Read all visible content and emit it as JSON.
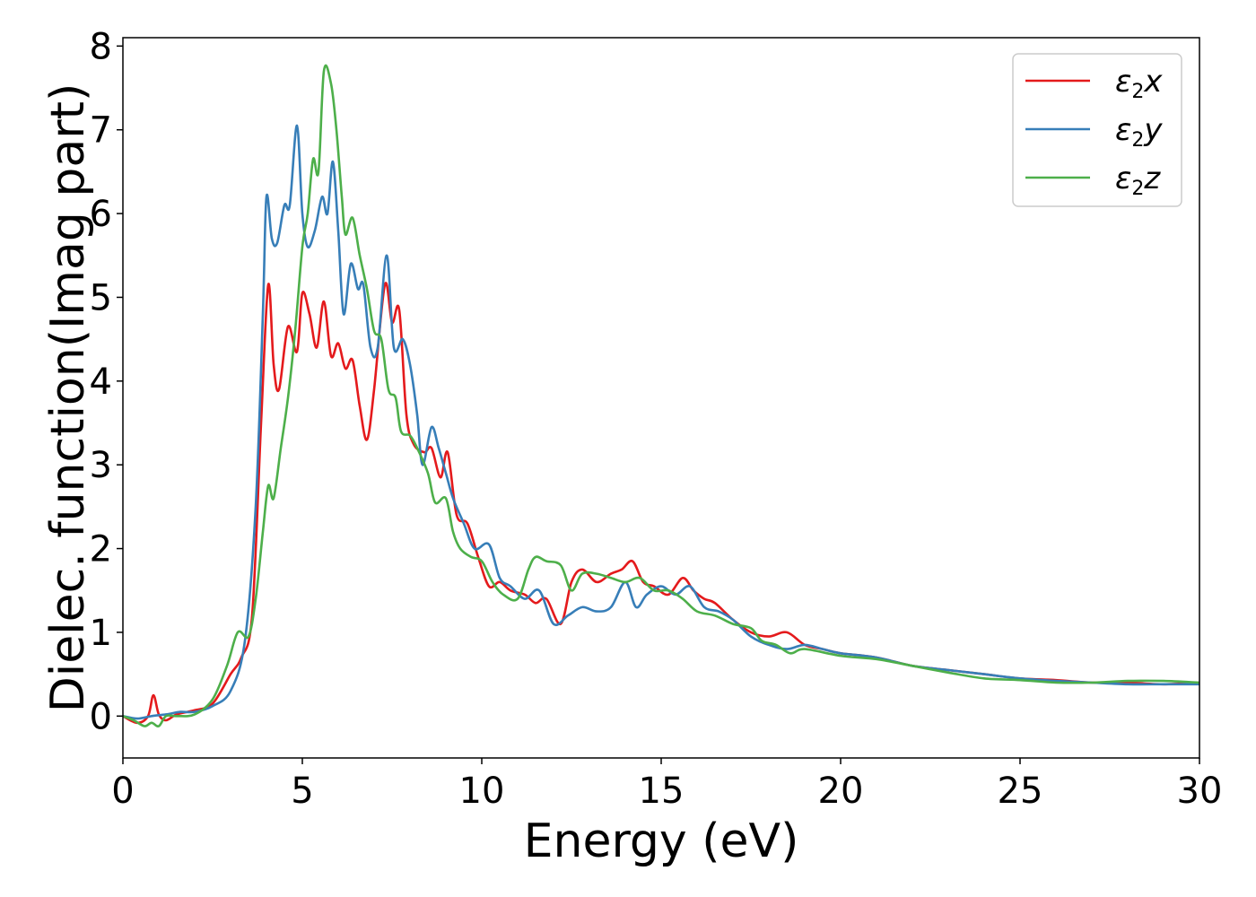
{
  "chart_data": {
    "type": "line",
    "xlabel": "Energy (eV)",
    "ylabel": "Dielec. function(Imag part)",
    "xlim": [
      0,
      30
    ],
    "ylim": [
      -0.5,
      8.1
    ],
    "xticks": [
      0,
      5,
      10,
      15,
      20,
      25,
      30
    ],
    "yticks": [
      0,
      1,
      2,
      3,
      4,
      5,
      6,
      7,
      8
    ],
    "grid": false,
    "legend_position": "top-right",
    "series": [
      {
        "name": "ε2x",
        "name_parts": [
          "ε",
          "2",
          "x"
        ],
        "color": "#e41a1c",
        "points": [
          [
            0,
            0
          ],
          [
            0.4,
            -0.08
          ],
          [
            0.7,
            0
          ],
          [
            0.85,
            0.25
          ],
          [
            1.0,
            0.02
          ],
          [
            1.2,
            -0.05
          ],
          [
            1.5,
            0.02
          ],
          [
            2.0,
            0.07
          ],
          [
            2.5,
            0.15
          ],
          [
            3.0,
            0.5
          ],
          [
            3.3,
            0.7
          ],
          [
            3.6,
            1.2
          ],
          [
            3.85,
            3.5
          ],
          [
            4.05,
            5.15
          ],
          [
            4.2,
            4.2
          ],
          [
            4.35,
            3.9
          ],
          [
            4.6,
            4.65
          ],
          [
            4.85,
            4.35
          ],
          [
            5.0,
            5.05
          ],
          [
            5.2,
            4.8
          ],
          [
            5.4,
            4.4
          ],
          [
            5.6,
            4.95
          ],
          [
            5.8,
            4.3
          ],
          [
            6.0,
            4.45
          ],
          [
            6.2,
            4.15
          ],
          [
            6.4,
            4.25
          ],
          [
            6.6,
            3.7
          ],
          [
            6.8,
            3.3
          ],
          [
            7.0,
            3.9
          ],
          [
            7.3,
            5.15
          ],
          [
            7.5,
            4.7
          ],
          [
            7.7,
            4.85
          ],
          [
            7.9,
            3.6
          ],
          [
            8.1,
            3.25
          ],
          [
            8.4,
            3.15
          ],
          [
            8.6,
            3.2
          ],
          [
            8.85,
            2.85
          ],
          [
            9.05,
            3.15
          ],
          [
            9.3,
            2.4
          ],
          [
            9.6,
            2.3
          ],
          [
            9.9,
            1.9
          ],
          [
            10.2,
            1.55
          ],
          [
            10.5,
            1.6
          ],
          [
            10.8,
            1.5
          ],
          [
            11.2,
            1.45
          ],
          [
            11.5,
            1.35
          ],
          [
            11.8,
            1.4
          ],
          [
            12.2,
            1.1
          ],
          [
            12.5,
            1.6
          ],
          [
            12.8,
            1.75
          ],
          [
            13.2,
            1.6
          ],
          [
            13.6,
            1.7
          ],
          [
            13.9,
            1.75
          ],
          [
            14.2,
            1.85
          ],
          [
            14.5,
            1.6
          ],
          [
            14.8,
            1.55
          ],
          [
            15.2,
            1.45
          ],
          [
            15.6,
            1.65
          ],
          [
            15.9,
            1.5
          ],
          [
            16.2,
            1.4
          ],
          [
            16.5,
            1.35
          ],
          [
            17.0,
            1.15
          ],
          [
            17.5,
            1.0
          ],
          [
            18.0,
            0.95
          ],
          [
            18.5,
            1.0
          ],
          [
            19.0,
            0.85
          ],
          [
            19.5,
            0.8
          ],
          [
            20.0,
            0.75
          ],
          [
            21.0,
            0.7
          ],
          [
            22.0,
            0.6
          ],
          [
            23.0,
            0.55
          ],
          [
            24.0,
            0.5
          ],
          [
            25.0,
            0.45
          ],
          [
            26.0,
            0.43
          ],
          [
            27.0,
            0.4
          ],
          [
            28.0,
            0.4
          ],
          [
            29.0,
            0.38
          ],
          [
            30.0,
            0.4
          ]
        ]
      },
      {
        "name": "ε2y",
        "name_parts": [
          "ε",
          "2",
          "y"
        ],
        "color": "#377eb8",
        "points": [
          [
            0,
            0
          ],
          [
            0.4,
            -0.03
          ],
          [
            0.8,
            0
          ],
          [
            1.2,
            0.02
          ],
          [
            1.6,
            0.05
          ],
          [
            2.0,
            0.05
          ],
          [
            2.5,
            0.12
          ],
          [
            3.0,
            0.3
          ],
          [
            3.4,
            0.9
          ],
          [
            3.7,
            2.5
          ],
          [
            3.9,
            4.8
          ],
          [
            4.0,
            6.2
          ],
          [
            4.15,
            5.7
          ],
          [
            4.3,
            5.65
          ],
          [
            4.5,
            6.1
          ],
          [
            4.65,
            6.1
          ],
          [
            4.85,
            7.05
          ],
          [
            5.0,
            6.0
          ],
          [
            5.15,
            5.6
          ],
          [
            5.35,
            5.8
          ],
          [
            5.55,
            6.2
          ],
          [
            5.7,
            6.0
          ],
          [
            5.85,
            6.62
          ],
          [
            6.0,
            5.8
          ],
          [
            6.15,
            4.8
          ],
          [
            6.35,
            5.4
          ],
          [
            6.55,
            5.1
          ],
          [
            6.7,
            5.15
          ],
          [
            6.9,
            4.4
          ],
          [
            7.1,
            4.4
          ],
          [
            7.35,
            5.5
          ],
          [
            7.55,
            4.4
          ],
          [
            7.8,
            4.5
          ],
          [
            8.0,
            4.2
          ],
          [
            8.2,
            3.6
          ],
          [
            8.35,
            3.0
          ],
          [
            8.6,
            3.45
          ],
          [
            8.8,
            3.2
          ],
          [
            9.0,
            2.9
          ],
          [
            9.2,
            2.6
          ],
          [
            9.5,
            2.3
          ],
          [
            9.8,
            2.0
          ],
          [
            10.2,
            2.05
          ],
          [
            10.5,
            1.65
          ],
          [
            10.8,
            1.55
          ],
          [
            11.2,
            1.4
          ],
          [
            11.6,
            1.5
          ],
          [
            12.0,
            1.1
          ],
          [
            12.4,
            1.2
          ],
          [
            12.8,
            1.3
          ],
          [
            13.2,
            1.25
          ],
          [
            13.6,
            1.3
          ],
          [
            14.0,
            1.6
          ],
          [
            14.3,
            1.3
          ],
          [
            14.6,
            1.45
          ],
          [
            15.0,
            1.55
          ],
          [
            15.4,
            1.45
          ],
          [
            15.8,
            1.55
          ],
          [
            16.2,
            1.3
          ],
          [
            16.6,
            1.25
          ],
          [
            17.0,
            1.15
          ],
          [
            17.5,
            0.95
          ],
          [
            18.0,
            0.85
          ],
          [
            18.5,
            0.8
          ],
          [
            19.0,
            0.85
          ],
          [
            19.5,
            0.8
          ],
          [
            20.0,
            0.75
          ],
          [
            21.0,
            0.7
          ],
          [
            22.0,
            0.6
          ],
          [
            23.0,
            0.55
          ],
          [
            24.0,
            0.5
          ],
          [
            25.0,
            0.45
          ],
          [
            26.0,
            0.42
          ],
          [
            27.0,
            0.4
          ],
          [
            28.0,
            0.38
          ],
          [
            29.0,
            0.38
          ],
          [
            30.0,
            0.38
          ]
        ]
      },
      {
        "name": "ε2z",
        "name_parts": [
          "ε",
          "2",
          "z"
        ],
        "color": "#4daf4a",
        "points": [
          [
            0,
            0
          ],
          [
            0.3,
            -0.05
          ],
          [
            0.6,
            -0.12
          ],
          [
            0.8,
            -0.08
          ],
          [
            1.0,
            -0.12
          ],
          [
            1.2,
            0
          ],
          [
            1.5,
            0
          ],
          [
            2.0,
            0.02
          ],
          [
            2.5,
            0.2
          ],
          [
            2.9,
            0.6
          ],
          [
            3.2,
            1.0
          ],
          [
            3.5,
            0.95
          ],
          [
            3.7,
            1.4
          ],
          [
            3.9,
            2.2
          ],
          [
            4.05,
            2.75
          ],
          [
            4.2,
            2.6
          ],
          [
            4.4,
            3.2
          ],
          [
            4.6,
            3.8
          ],
          [
            4.8,
            4.6
          ],
          [
            5.0,
            5.6
          ],
          [
            5.15,
            6.0
          ],
          [
            5.3,
            6.65
          ],
          [
            5.45,
            6.5
          ],
          [
            5.6,
            7.7
          ],
          [
            5.8,
            7.55
          ],
          [
            5.95,
            7.0
          ],
          [
            6.1,
            6.2
          ],
          [
            6.2,
            5.75
          ],
          [
            6.4,
            5.95
          ],
          [
            6.6,
            5.5
          ],
          [
            6.8,
            5.1
          ],
          [
            7.0,
            4.6
          ],
          [
            7.2,
            4.5
          ],
          [
            7.4,
            3.9
          ],
          [
            7.6,
            3.8
          ],
          [
            7.75,
            3.4
          ],
          [
            8.0,
            3.35
          ],
          [
            8.2,
            3.2
          ],
          [
            8.5,
            2.9
          ],
          [
            8.7,
            2.55
          ],
          [
            9.0,
            2.6
          ],
          [
            9.2,
            2.2
          ],
          [
            9.4,
            2.0
          ],
          [
            9.7,
            1.9
          ],
          [
            10.0,
            1.85
          ],
          [
            10.3,
            1.6
          ],
          [
            10.6,
            1.45
          ],
          [
            11.0,
            1.4
          ],
          [
            11.3,
            1.75
          ],
          [
            11.5,
            1.9
          ],
          [
            11.8,
            1.85
          ],
          [
            12.2,
            1.8
          ],
          [
            12.5,
            1.5
          ],
          [
            12.8,
            1.7
          ],
          [
            13.2,
            1.7
          ],
          [
            13.6,
            1.65
          ],
          [
            14.0,
            1.6
          ],
          [
            14.4,
            1.65
          ],
          [
            14.8,
            1.5
          ],
          [
            15.2,
            1.5
          ],
          [
            15.6,
            1.4
          ],
          [
            16.0,
            1.25
          ],
          [
            16.5,
            1.2
          ],
          [
            17.0,
            1.1
          ],
          [
            17.5,
            1.05
          ],
          [
            17.8,
            0.9
          ],
          [
            18.2,
            0.85
          ],
          [
            18.6,
            0.75
          ],
          [
            19.0,
            0.8
          ],
          [
            20.0,
            0.72
          ],
          [
            21.0,
            0.68
          ],
          [
            22.0,
            0.6
          ],
          [
            23.0,
            0.52
          ],
          [
            24.0,
            0.45
          ],
          [
            25.0,
            0.43
          ],
          [
            26.0,
            0.4
          ],
          [
            27.0,
            0.4
          ],
          [
            28.0,
            0.42
          ],
          [
            29.0,
            0.42
          ],
          [
            30.0,
            0.4
          ]
        ]
      }
    ]
  }
}
